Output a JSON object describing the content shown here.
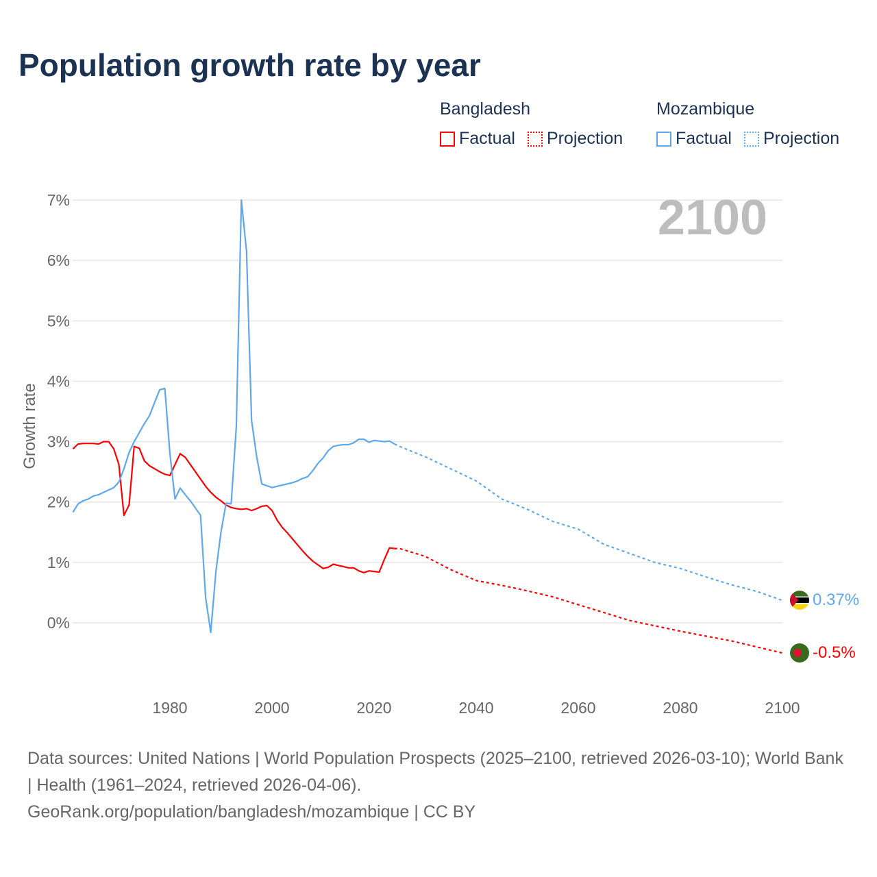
{
  "chart_data": {
    "type": "line",
    "title": "Population growth rate by year",
    "ylabel": "Growth rate",
    "xlabel": "",
    "year_overlay": "2100",
    "xlim": [
      1961,
      2100
    ],
    "ylim": [
      -1.1,
      7.0
    ],
    "x_ticks": [
      1980,
      2000,
      2020,
      2040,
      2060,
      2080,
      2100
    ],
    "y_ticks": [
      0,
      1,
      2,
      3,
      4,
      5,
      6,
      7
    ],
    "y_tick_labels": [
      "0%",
      "1%",
      "2%",
      "3%",
      "4%",
      "5%",
      "6%",
      "7%"
    ],
    "grid": true,
    "legend_position": "top-right",
    "series": [
      {
        "name": "Bangladesh",
        "color": "#ff0000",
        "factual_label": "Factual",
        "projection_label": "Projection",
        "end_label": "-0.5%",
        "factual": {
          "x": [
            1961,
            1962,
            1963,
            1964,
            1965,
            1966,
            1967,
            1968,
            1969,
            1970,
            1971,
            1972,
            1973,
            1974,
            1975,
            1976,
            1977,
            1978,
            1979,
            1980,
            1981,
            1982,
            1983,
            1984,
            1985,
            1986,
            1987,
            1988,
            1989,
            1990,
            1991,
            1992,
            1993,
            1994,
            1995,
            1996,
            1997,
            1998,
            1999,
            2000,
            2001,
            2002,
            2003,
            2004,
            2005,
            2006,
            2007,
            2008,
            2009,
            2010,
            2011,
            2012,
            2013,
            2014,
            2015,
            2016,
            2017,
            2018,
            2019,
            2020,
            2021,
            2022,
            2023,
            2024
          ],
          "y": [
            2.88,
            2.96,
            2.97,
            2.97,
            2.97,
            2.96,
            3.0,
            3.0,
            2.88,
            2.62,
            1.78,
            1.95,
            2.92,
            2.89,
            2.68,
            2.6,
            2.55,
            2.5,
            2.46,
            2.44,
            2.62,
            2.8,
            2.74,
            2.62,
            2.5,
            2.38,
            2.26,
            2.16,
            2.08,
            2.02,
            1.95,
            1.91,
            1.89,
            1.88,
            1.89,
            1.86,
            1.89,
            1.93,
            1.94,
            1.86,
            1.7,
            1.58,
            1.49,
            1.39,
            1.29,
            1.19,
            1.1,
            1.02,
            0.96,
            0.9,
            0.92,
            0.97,
            0.95,
            0.93,
            0.91,
            0.91,
            0.86,
            0.83,
            0.86,
            0.85,
            0.84,
            1.05,
            1.24,
            1.23
          ]
        },
        "projection": {
          "x": [
            2024,
            2025,
            2030,
            2035,
            2040,
            2045,
            2050,
            2055,
            2060,
            2065,
            2070,
            2075,
            2080,
            2085,
            2090,
            2095,
            2100
          ],
          "y": [
            1.23,
            1.23,
            1.1,
            0.88,
            0.7,
            0.62,
            0.53,
            0.43,
            0.3,
            0.17,
            0.04,
            -0.05,
            -0.14,
            -0.22,
            -0.3,
            -0.4,
            -0.5
          ]
        }
      },
      {
        "name": "Mozambique",
        "color": "#5ea8ee",
        "factual_label": "Factual",
        "projection_label": "Projection",
        "end_label": "0.37%",
        "factual": {
          "x": [
            1961,
            1962,
            1963,
            1964,
            1965,
            1966,
            1967,
            1968,
            1969,
            1970,
            1971,
            1972,
            1973,
            1974,
            1975,
            1976,
            1977,
            1978,
            1979,
            1980,
            1981,
            1982,
            1983,
            1984,
            1985,
            1986,
            1987,
            1988,
            1989,
            1990,
            1991,
            1992,
            1993,
            1994,
            1995,
            1996,
            1997,
            1998,
            1999,
            2000,
            2001,
            2002,
            2003,
            2004,
            2005,
            2006,
            2007,
            2008,
            2009,
            2010,
            2011,
            2012,
            2013,
            2014,
            2015,
            2016,
            2017,
            2018,
            2019,
            2020,
            2021,
            2022,
            2023,
            2024
          ],
          "y": [
            1.83,
            1.97,
            2.02,
            2.05,
            2.1,
            2.12,
            2.16,
            2.2,
            2.24,
            2.33,
            2.55,
            2.82,
            3.0,
            3.15,
            3.3,
            3.43,
            3.65,
            3.86,
            3.88,
            2.8,
            2.05,
            2.23,
            2.12,
            2.02,
            1.9,
            1.78,
            0.42,
            -0.16,
            0.85,
            1.5,
            1.98,
            1.97,
            3.25,
            7.0,
            6.15,
            3.35,
            2.75,
            2.3,
            2.27,
            2.24,
            2.26,
            2.28,
            2.3,
            2.32,
            2.35,
            2.39,
            2.42,
            2.52,
            2.64,
            2.73,
            2.85,
            2.92,
            2.94,
            2.95,
            2.95,
            2.98,
            3.04,
            3.04,
            2.99,
            3.02,
            3.01,
            3.0,
            3.01,
            2.96
          ]
        },
        "projection": {
          "x": [
            2024,
            2025,
            2030,
            2035,
            2040,
            2045,
            2050,
            2055,
            2060,
            2065,
            2070,
            2075,
            2080,
            2085,
            2090,
            2095,
            2100
          ],
          "y": [
            2.96,
            2.92,
            2.75,
            2.55,
            2.35,
            2.05,
            1.88,
            1.68,
            1.55,
            1.3,
            1.15,
            1.0,
            0.9,
            0.76,
            0.63,
            0.52,
            0.37
          ]
        }
      }
    ]
  },
  "footer": {
    "sources": "Data sources: United Nations | World Population Prospects (2025–2100, retrieved 2026-03-10); World Bank | Health (1961–2024, retrieved 2026-04-06).",
    "attribution": "GeoRank.org/population/bangladesh/mozambique | CC BY"
  }
}
